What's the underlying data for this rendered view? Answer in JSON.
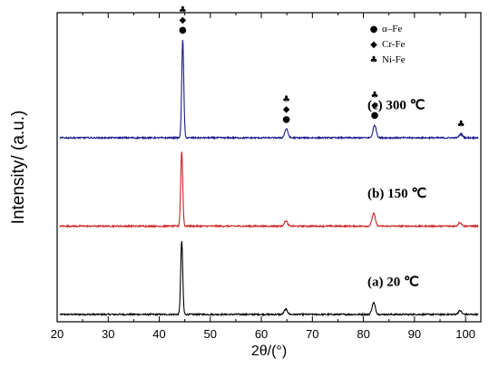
{
  "chart_data": {
    "type": "line",
    "title": "",
    "xlabel": "2θ/(°)",
    "ylabel": "Intensity/ (a.u.)",
    "xlim": [
      20,
      103
    ],
    "ylim": [
      0,
      4.2
    ],
    "x_ticks": [
      20,
      30,
      40,
      50,
      60,
      70,
      80,
      90,
      100
    ],
    "y_ticks_shown": false,
    "grid": false,
    "legend_position": "top-right",
    "series": [
      {
        "name": "(a) 20 ℃",
        "color": "#000000",
        "baseline": 0.1,
        "peaks": [
          {
            "x": 44.4,
            "height": 1.0
          },
          {
            "x": 64.8,
            "height": 0.07
          },
          {
            "x": 82.0,
            "height": 0.16
          },
          {
            "x": 98.9,
            "height": 0.05
          }
        ]
      },
      {
        "name": "(b) 150 ℃",
        "color": "#cc2222",
        "baseline": 1.3,
        "peaks": [
          {
            "x": 44.4,
            "height": 1.02
          },
          {
            "x": 64.8,
            "height": 0.07
          },
          {
            "x": 82.0,
            "height": 0.17
          },
          {
            "x": 98.9,
            "height": 0.05
          }
        ]
      },
      {
        "name": "(c) 300 ℃",
        "color": "#1a1a8c",
        "baseline": 2.5,
        "peaks": [
          {
            "x": 44.6,
            "height": 1.33
          },
          {
            "x": 64.9,
            "height": 0.12
          },
          {
            "x": 82.2,
            "height": 0.17
          },
          {
            "x": 99.1,
            "height": 0.05
          }
        ]
      }
    ],
    "peak_markers": [
      {
        "x": 44.6,
        "symbols": [
          "club",
          "diamond",
          "circle"
        ]
      },
      {
        "x": 64.9,
        "symbols": [
          "club",
          "diamond",
          "circle"
        ]
      },
      {
        "x": 82.2,
        "symbols": [
          "club",
          "diamond",
          "circle"
        ]
      },
      {
        "x": 99.1,
        "symbols": [
          "club"
        ]
      }
    ],
    "legend": [
      {
        "symbol": "circle",
        "label": "α–Fe"
      },
      {
        "symbol": "diamond",
        "label": "Cr-Fe"
      },
      {
        "symbol": "club",
        "label": "Ni-Fe"
      }
    ]
  }
}
